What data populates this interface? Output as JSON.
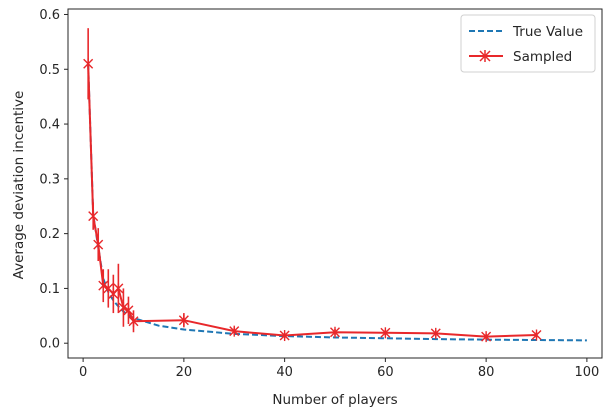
{
  "chart_data": {
    "type": "line",
    "xlabel": "Number of players",
    "ylabel": "Average deviation incentive",
    "xlim": [
      -3,
      103
    ],
    "ylim": [
      -0.027,
      0.61
    ],
    "xticks": [
      0,
      20,
      40,
      60,
      80,
      100
    ],
    "yticks": [
      0.0,
      0.1,
      0.2,
      0.3,
      0.4,
      0.5,
      0.6
    ],
    "grid": false,
    "legend_position": "top-right",
    "series": [
      {
        "name": "True Value",
        "style": "dashed",
        "color": "#1f77b4",
        "x": [
          1,
          2,
          3,
          4,
          5,
          6,
          7,
          8,
          9,
          10,
          15,
          20,
          30,
          40,
          50,
          60,
          70,
          80,
          90,
          100
        ],
        "y": [
          0.51,
          0.235,
          0.175,
          0.118,
          0.093,
          0.078,
          0.067,
          0.058,
          0.051,
          0.046,
          0.032,
          0.025,
          0.017,
          0.013,
          0.0105,
          0.009,
          0.0075,
          0.0065,
          0.0058,
          0.0052
        ]
      },
      {
        "name": "Sampled",
        "style": "solid",
        "marker": "x-star",
        "color": "#e8282b",
        "x": [
          1,
          2,
          3,
          4,
          5,
          6,
          7,
          8,
          9,
          10,
          20,
          30,
          40,
          50,
          60,
          70,
          80,
          90
        ],
        "y": [
          0.51,
          0.232,
          0.18,
          0.105,
          0.1,
          0.09,
          0.1,
          0.065,
          0.06,
          0.04,
          0.042,
          0.022,
          0.014,
          0.02,
          0.019,
          0.018,
          0.012,
          0.015
        ],
        "err": [
          0.065,
          0.025,
          0.03,
          0.03,
          0.035,
          0.035,
          0.045,
          0.035,
          0.025,
          0.02,
          0.013,
          0.007,
          0.005,
          0.006,
          0.005,
          0.006,
          0.005,
          0.005
        ]
      }
    ]
  }
}
